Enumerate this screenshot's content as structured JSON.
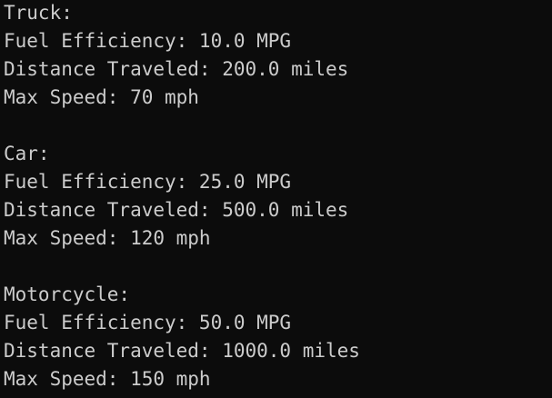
{
  "terminal": {
    "lines": [
      "Truck:",
      "Fuel Efficiency: 10.0 MPG",
      "Distance Traveled: 200.0 miles",
      "Max Speed: 70 mph",
      "",
      "Car:",
      "Fuel Efficiency: 25.0 MPG",
      "Distance Traveled: 500.0 miles",
      "Max Speed: 120 mph",
      "",
      "Motorcycle:",
      "Fuel Efficiency: 50.0 MPG",
      "Distance Traveled: 1000.0 miles",
      "Max Speed: 150 mph"
    ]
  },
  "colors": {
    "background": "#0c0c0c",
    "text": "#cccccc"
  }
}
